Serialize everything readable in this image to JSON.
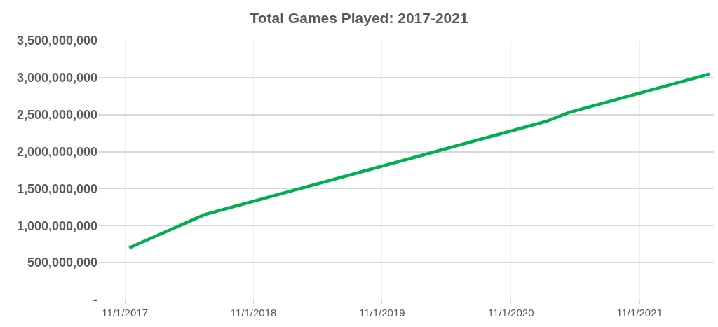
{
  "chart_data": {
    "type": "line",
    "title": "Total Games Played: 2017-2021",
    "x": [
      "2017-11-13",
      "2018-06-16",
      "2021-02-10",
      "2021-04-15",
      "2022-05-19"
    ],
    "series": [
      {
        "color": "#00b050",
        "values": [
          700000000,
          1150000000,
          2410000000,
          2530000000,
          3050000000
        ]
      }
    ],
    "xlim": [
      "2017-08-17",
      "2022-05-31"
    ],
    "xticks": [
      {
        "value": "2017-11-01",
        "label": "11/1/2017"
      },
      {
        "value": "2018-11-01",
        "label": "11/1/2018"
      },
      {
        "value": "2019-11-01",
        "label": "11/1/2019"
      },
      {
        "value": "2020-11-01",
        "label": "11/1/2020"
      },
      {
        "value": "2021-11-01",
        "label": "11/1/2021"
      }
    ],
    "ylim": [
      0,
      3500000000
    ],
    "yticks": [
      {
        "value": 0,
        "label": "-"
      },
      {
        "value": 500000000,
        "label": "500,000,000"
      },
      {
        "value": 1000000000,
        "label": "1,000,000,000"
      },
      {
        "value": 1500000000,
        "label": "1,500,000,000"
      },
      {
        "value": 2000000000,
        "label": "2,000,000,000"
      },
      {
        "value": 2500000000,
        "label": "2,500,000,000"
      },
      {
        "value": 3000000000,
        "label": "3,000,000,000"
      },
      {
        "value": 3500000000,
        "label": "3,500,000,000"
      }
    ],
    "grid": true,
    "marker": "none",
    "line_style": "solid"
  }
}
